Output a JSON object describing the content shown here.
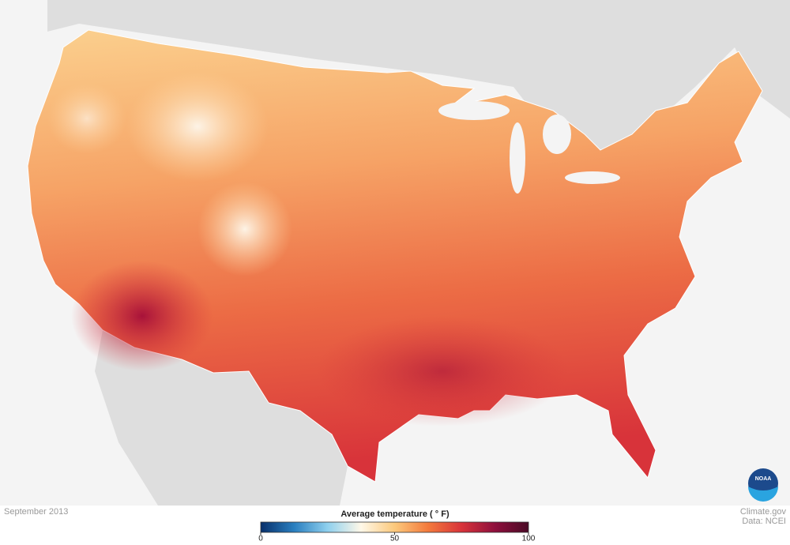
{
  "map": {
    "date": "September 2013",
    "source_site": "Climate.gov",
    "source_data": "Data: NCEI",
    "logo_text": "NOAA"
  },
  "colorbar": {
    "label": "Average temperature ( ° F)",
    "range": [
      0,
      100
    ],
    "ticks": [
      0,
      50,
      100
    ],
    "colors": [
      "#08306b",
      "#2a7fc0",
      "#8fd0ee",
      "#fff8e8",
      "#fcc97c",
      "#f37a3c",
      "#d8333a",
      "#8e0f3c",
      "#4a0a26"
    ]
  }
}
